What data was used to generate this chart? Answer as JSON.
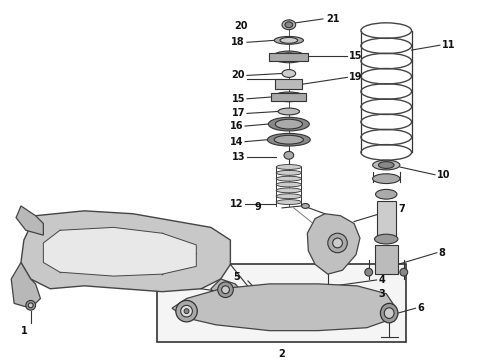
{
  "bg_color": "#ffffff",
  "line_color": "#333333",
  "label_fontsize": 7.0,
  "fig_width": 4.9,
  "fig_height": 3.6,
  "dpi": 100
}
